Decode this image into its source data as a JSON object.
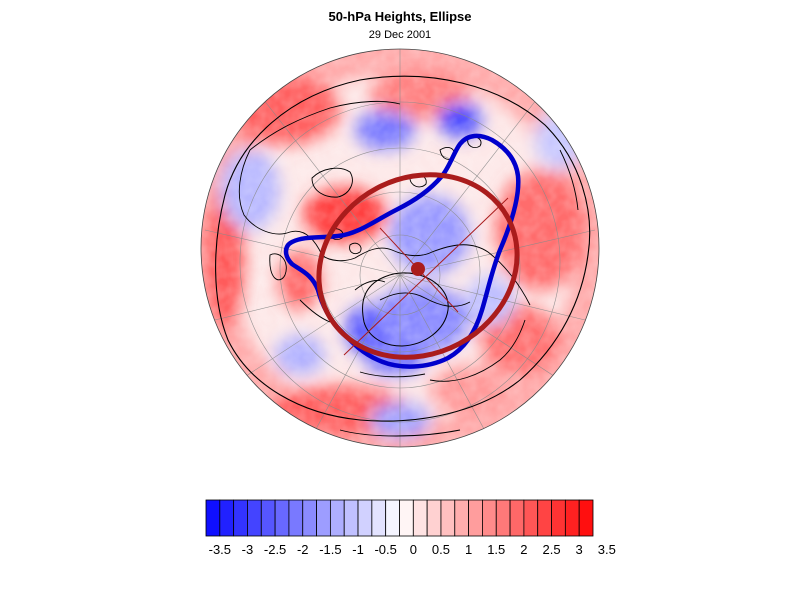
{
  "title": "50-hPa Heights, Ellipse",
  "date": "29 Dec 2001",
  "colorbar": {
    "tick_labels": [
      "-3.5",
      "-3",
      "-2.5",
      "-2",
      "-1.5",
      "-1",
      "-0.5",
      "0",
      "0.5",
      "1",
      "1.5",
      "2",
      "2.5",
      "3",
      "3.5"
    ],
    "min": -3.5,
    "max": 3.5,
    "num_bins": 28,
    "negative_color": "#0000ff",
    "positive_color": "#ff0000"
  },
  "colors": {
    "anomaly_blue": "#0000cc",
    "ellipse_red": "#aa1c1c",
    "coastline": "#000000",
    "gridline": "#8a8a8a"
  }
}
